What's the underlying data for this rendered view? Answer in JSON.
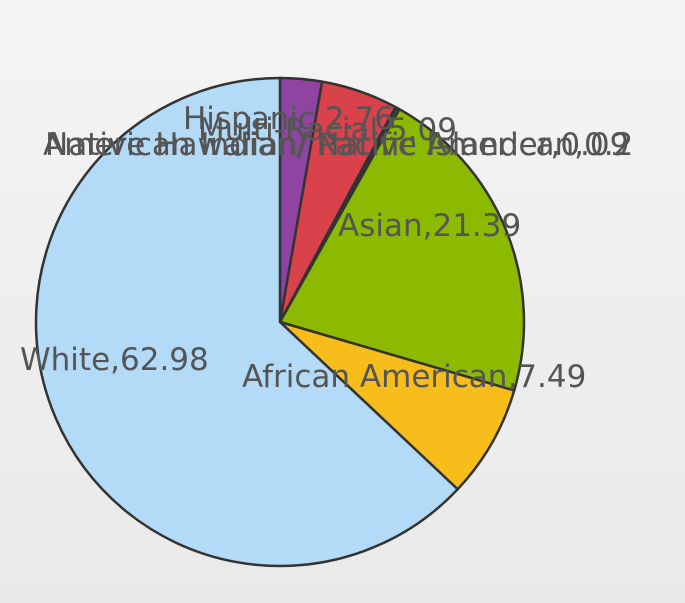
{
  "chart_data": {
    "type": "pie",
    "title": "",
    "start": "top",
    "direction": "clockwise",
    "outline_color": "#333333",
    "label_color": "#555555",
    "legend": "none",
    "slices": [
      {
        "label": "Hispanic",
        "value": 2.76,
        "display": "Hispanic,2.76",
        "color": "#8e44a0"
      },
      {
        "label": "Multi-Racial",
        "value": 5.09,
        "display": "Multi-Racial,5.09",
        "color": "#d9414b"
      },
      {
        "label": "Native Hawaiian/ Pacific Islander",
        "value": 0.09,
        "display": "Native Hawaiian/ Pacific Islander,0.09",
        "color": "#2b6cc4"
      },
      {
        "label": "American Indian/ Native American",
        "value": 0.2,
        "display": "American Indian/ Native American,0.2",
        "color": "#3a9c3a"
      },
      {
        "label": "Asian",
        "value": 21.39,
        "display": "Asian,21.39",
        "color": "#8cba00"
      },
      {
        "label": "African American",
        "value": 7.49,
        "display": "African American,7.49",
        "color": "#f7bd1b"
      },
      {
        "label": "White",
        "value": 62.98,
        "display": "White,62.98",
        "color": "#b3daf7"
      }
    ]
  }
}
